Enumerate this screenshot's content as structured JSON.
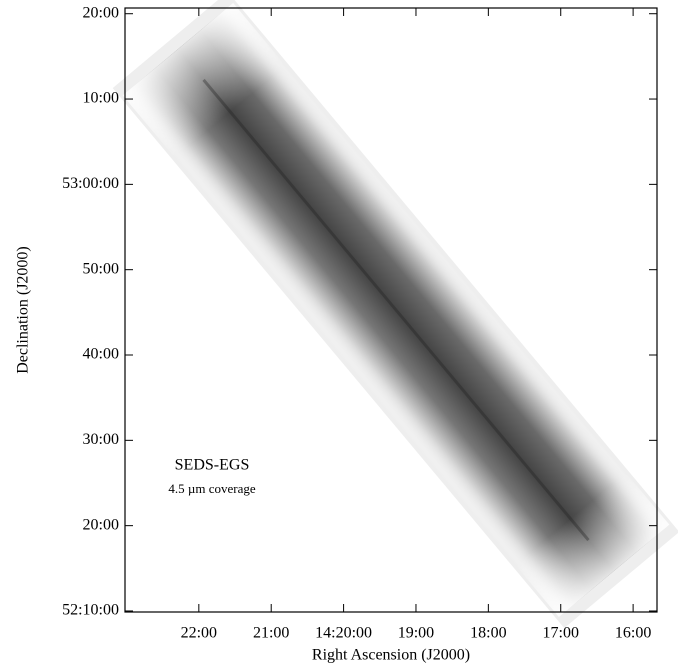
{
  "chart_data": {
    "type": "image",
    "xlabel": "Right Ascension (J2000)",
    "ylabel": "Declination (J2000)",
    "annotations": [
      "SEDS-EGS",
      "4.5 µm coverage"
    ],
    "xlim": [
      23.02,
      15.67
    ],
    "xticks": [
      {
        "value": 22,
        "label": "22:00"
      },
      {
        "value": 21,
        "label": "21:00"
      },
      {
        "value": 20,
        "label": "14:20:00"
      },
      {
        "value": 19,
        "label": "19:00"
      },
      {
        "value": 18,
        "label": "18:00"
      },
      {
        "value": 17,
        "label": "17:00"
      },
      {
        "value": 16,
        "label": "16:00"
      }
    ],
    "ylim": [
      9.88,
      80.67
    ],
    "yticks": [
      {
        "value": 80,
        "label": "20:00"
      },
      {
        "value": 70,
        "label": "10:00"
      },
      {
        "value": 60,
        "label": "53:00:00"
      },
      {
        "value": 50,
        "label": "50:00"
      },
      {
        "value": 40,
        "label": "40:00"
      },
      {
        "value": 30,
        "label": "30:00"
      },
      {
        "value": 20,
        "label": "20:00"
      },
      {
        "value": 10,
        "label": "52:10:00"
      }
    ]
  }
}
